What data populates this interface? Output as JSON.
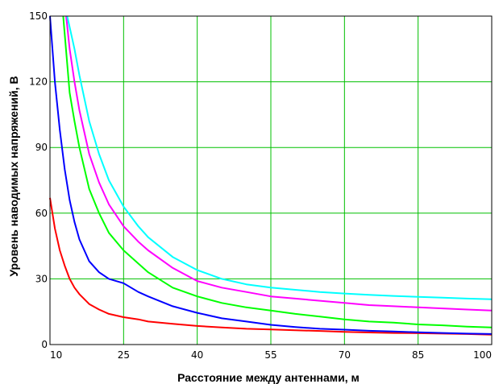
{
  "chart_data": {
    "type": "line",
    "title": "",
    "xlabel": "Расстояние между антеннами, м",
    "ylabel": "Уровень наводимых напряжений, В",
    "xlim": [
      10,
      100
    ],
    "ylim": [
      0,
      150
    ],
    "xticks": [
      10,
      25,
      40,
      55,
      70,
      85,
      100
    ],
    "yticks": [
      0,
      30,
      60,
      90,
      120,
      150
    ],
    "grid": true,
    "grid_color": "#00c000",
    "legend": "none",
    "series": [
      {
        "color": "#ff0000",
        "x": [
          10,
          11,
          12,
          13,
          14,
          15,
          16,
          18,
          20,
          22,
          25,
          28,
          30,
          35,
          40,
          45,
          50,
          55,
          60,
          65,
          70,
          75,
          80,
          85,
          90,
          95,
          100
        ],
        "values": [
          67,
          53,
          43,
          36,
          30,
          26,
          23,
          18.5,
          16,
          14,
          12.5,
          11.5,
          10.5,
          9.5,
          8.5,
          7.8,
          7.2,
          6.9,
          6.5,
          6.2,
          5.8,
          5.5,
          5.3,
          5.2,
          5.0,
          4.8,
          4.5
        ]
      },
      {
        "color": "#0000ff",
        "x": [
          10,
          11,
          12,
          13,
          14,
          15,
          16,
          18,
          20,
          22,
          25,
          28,
          30,
          35,
          40,
          45,
          50,
          55,
          60,
          65,
          70,
          75,
          80,
          85,
          90,
          95,
          100
        ],
        "values": [
          150,
          120,
          98,
          80,
          66,
          56,
          48,
          38,
          33,
          30,
          28,
          24,
          22,
          17.5,
          14.5,
          12,
          10.5,
          9,
          8,
          7.2,
          6.8,
          6.3,
          6,
          5.6,
          5.3,
          5.0,
          4.8
        ]
      },
      {
        "color": "#00ff00",
        "x": [
          12.7,
          14,
          15,
          16,
          18,
          20,
          22,
          25,
          28,
          30,
          35,
          40,
          45,
          50,
          55,
          60,
          65,
          70,
          75,
          80,
          85,
          90,
          95,
          100
        ],
        "values": [
          150,
          115,
          102,
          90,
          71,
          60,
          51,
          43,
          37,
          33,
          26,
          22,
          19,
          17,
          15.5,
          14,
          12.8,
          11.5,
          10.5,
          10,
          9.2,
          8.8,
          8.2,
          7.8
        ]
      },
      {
        "color": "#ff00ff",
        "x": [
          13.3,
          14,
          15,
          16,
          18,
          20,
          22,
          25,
          28,
          30,
          35,
          40,
          45,
          50,
          55,
          60,
          65,
          70,
          75,
          80,
          85,
          90,
          95,
          100
        ],
        "values": [
          150,
          135,
          120,
          107,
          87,
          74,
          64,
          54,
          47,
          43,
          35,
          29,
          26,
          24,
          22,
          21,
          20,
          19,
          18,
          17.5,
          17,
          16.5,
          16,
          15.5
        ]
      },
      {
        "color": "#00ffff",
        "x": [
          13.5,
          14,
          15,
          16,
          18,
          20,
          22,
          25,
          28,
          30,
          35,
          40,
          45,
          50,
          55,
          60,
          65,
          70,
          75,
          80,
          85,
          90,
          95,
          100
        ],
        "values": [
          150,
          145,
          135,
          123,
          102,
          87,
          75,
          63,
          54,
          49,
          40,
          34,
          30,
          27.5,
          26,
          25,
          24,
          23.3,
          22.7,
          22.2,
          21.8,
          21.4,
          21,
          20.7
        ]
      }
    ]
  }
}
